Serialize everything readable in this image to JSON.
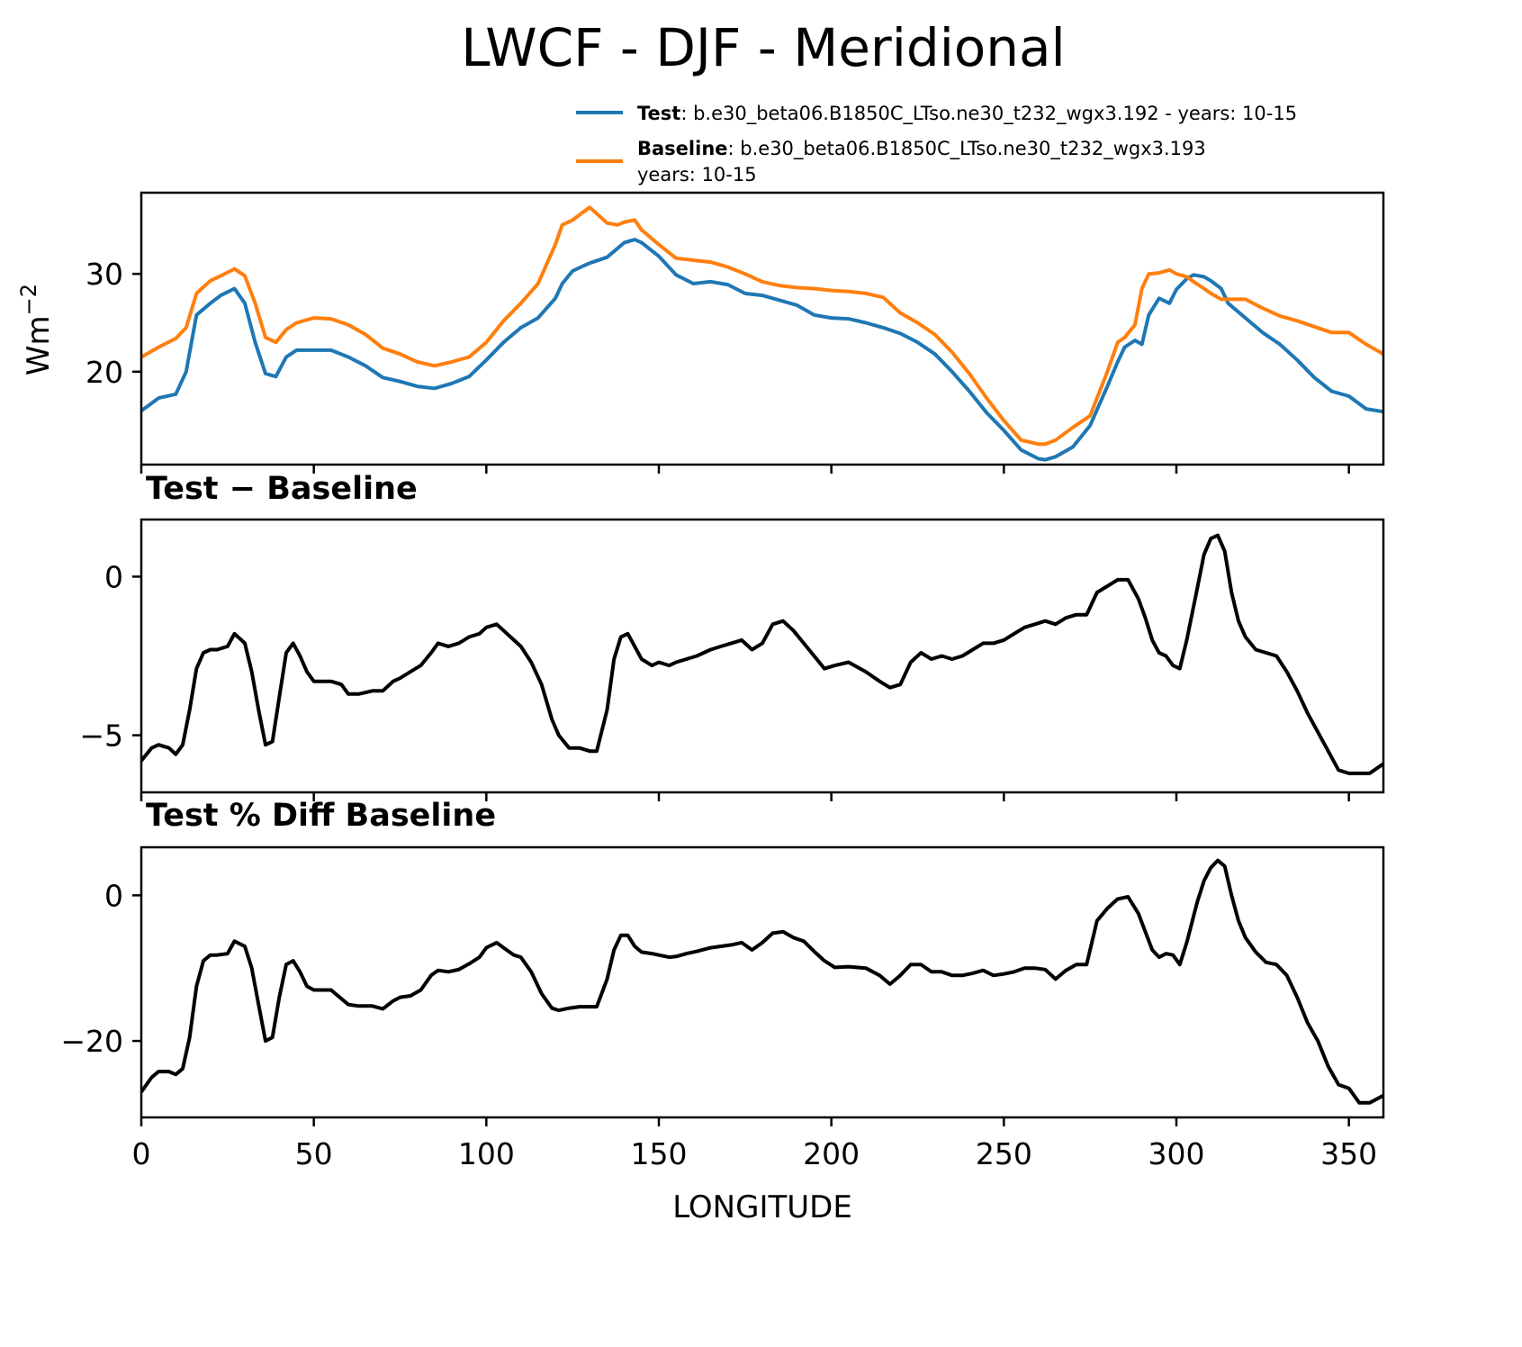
{
  "chart_data": {
    "type": "line",
    "title": "LWCF - DJF - Meridional",
    "xlabel": "LONGITUDE",
    "xlim": [
      0,
      360
    ],
    "xticks": [
      0,
      50,
      100,
      150,
      200,
      250,
      300,
      350
    ],
    "xtick_labels": [
      "0",
      "50",
      "100",
      "150",
      "200",
      "250",
      "300",
      "350"
    ],
    "legend": {
      "placement": "top-right (above top panel)",
      "entries": [
        {
          "name_bold": "Test",
          "text": ": b.e30_beta06.B1850C_LTso.ne30_t232_wgx3.192 - years: 10-15",
          "color": "#1f77b4"
        },
        {
          "name_bold": "Baseline",
          "text": ": b.e30_beta06.B1850C_LTso.ne30_t232_wgx3.193",
          "text2": "years: 10-15",
          "color": "#ff7f0e"
        }
      ]
    },
    "panels": [
      {
        "id": "main",
        "title": "",
        "ylabel": "Wm",
        "ylabel_sup": "−2",
        "ylim": [
          10.5,
          38.3
        ],
        "yticks": [
          20,
          30
        ],
        "ytick_labels": [
          "20",
          "30"
        ],
        "grid": false,
        "series": [
          {
            "name": "Test",
            "color": "#1f77b4",
            "x": [
              0,
              5,
              10,
              13,
              16,
              20,
              23,
              27,
              30,
              33,
              36,
              39,
              42,
              45,
              50,
              55,
              60,
              65,
              70,
              75,
              80,
              85,
              90,
              95,
              100,
              105,
              110,
              115,
              120,
              122,
              125,
              128,
              130,
              135,
              140,
              143,
              145,
              150,
              155,
              160,
              165,
              170,
              175,
              180,
              185,
              190,
              195,
              200,
              205,
              210,
              215,
              220,
              225,
              230,
              235,
              240,
              245,
              250,
              255,
              260,
              262,
              265,
              270,
              275,
              280,
              283,
              285,
              288,
              290,
              292,
              295,
              298,
              300,
              303,
              305,
              308,
              310,
              313,
              315,
              320,
              325,
              330,
              335,
              340,
              345,
              350,
              355,
              360
            ],
            "y": [
              16.0,
              17.3,
              17.7,
              20.0,
              25.8,
              27.0,
              27.8,
              28.5,
              27.0,
              23.0,
              19.8,
              19.5,
              21.5,
              22.2,
              22.2,
              22.2,
              21.5,
              20.6,
              19.4,
              19.0,
              18.5,
              18.3,
              18.8,
              19.5,
              21.2,
              23.0,
              24.5,
              25.5,
              27.5,
              29.0,
              30.3,
              30.8,
              31.1,
              31.7,
              33.2,
              33.5,
              33.2,
              31.8,
              29.9,
              29.0,
              29.2,
              28.9,
              28.0,
              27.8,
              27.3,
              26.8,
              25.8,
              25.5,
              25.4,
              25.0,
              24.5,
              23.9,
              23.0,
              21.8,
              20.0,
              18.0,
              15.8,
              14.0,
              12.0,
              11.1,
              11.0,
              11.3,
              12.3,
              14.5,
              18.5,
              21.0,
              22.5,
              23.2,
              22.8,
              25.8,
              27.5,
              27.0,
              28.4,
              29.5,
              29.9,
              29.7,
              29.3,
              28.5,
              27.0,
              25.5,
              24.0,
              22.8,
              21.2,
              19.4,
              18.0,
              17.5,
              16.2,
              15.9
            ]
          },
          {
            "name": "Baseline",
            "color": "#ff7f0e",
            "x": [
              0,
              5,
              10,
              13,
              16,
              20,
              23,
              27,
              30,
              33,
              36,
              39,
              42,
              45,
              50,
              55,
              60,
              65,
              70,
              75,
              80,
              85,
              90,
              95,
              100,
              105,
              110,
              115,
              120,
              122,
              125,
              128,
              130,
              135,
              138,
              140,
              143,
              145,
              150,
              155,
              160,
              165,
              170,
              175,
              180,
              185,
              190,
              195,
              200,
              205,
              210,
              215,
              220,
              225,
              230,
              235,
              240,
              245,
              250,
              255,
              260,
              262,
              265,
              270,
              275,
              280,
              283,
              285,
              288,
              290,
              292,
              295,
              298,
              300,
              303,
              305,
              308,
              310,
              313,
              315,
              320,
              325,
              330,
              335,
              340,
              345,
              350,
              355,
              360
            ],
            "y": [
              21.5,
              22.5,
              23.4,
              24.5,
              28.0,
              29.3,
              29.8,
              30.5,
              29.8,
              27.0,
              23.5,
              23.0,
              24.3,
              25.0,
              25.5,
              25.4,
              24.8,
              23.8,
              22.4,
              21.8,
              21.0,
              20.6,
              21.0,
              21.5,
              23.0,
              25.2,
              27.0,
              29.0,
              33.0,
              35.0,
              35.5,
              36.3,
              36.8,
              35.2,
              35.0,
              35.3,
              35.5,
              34.5,
              33.0,
              31.6,
              31.4,
              31.2,
              30.7,
              30.0,
              29.2,
              28.8,
              28.6,
              28.5,
              28.3,
              28.2,
              28.0,
              27.6,
              26.0,
              25.0,
              23.8,
              22.0,
              19.8,
              17.3,
              15.0,
              13.0,
              12.6,
              12.6,
              13.0,
              14.3,
              15.5,
              20.0,
              23.0,
              23.5,
              24.8,
              28.5,
              30.0,
              30.1,
              30.4,
              30.0,
              29.7,
              29.2,
              28.5,
              28.0,
              27.4,
              27.4,
              27.4,
              26.5,
              25.7,
              25.2,
              24.6,
              24.0,
              24.0,
              22.8,
              21.8
            ]
          }
        ]
      },
      {
        "id": "diff",
        "title": "Test − Baseline",
        "ylim": [
          -6.8,
          1.8
        ],
        "yticks": [
          -5,
          0
        ],
        "ytick_labels": [
          "−5",
          "0"
        ],
        "grid": false,
        "series": [
          {
            "name": "Test - Baseline",
            "color": "#000000",
            "x": [
              0,
              3,
              5,
              8,
              10,
              12,
              14,
              16,
              18,
              20,
              22,
              25,
              27,
              30,
              32,
              34,
              36,
              38,
              40,
              42,
              44,
              46,
              48,
              50,
              53,
              55,
              58,
              60,
              63,
              67,
              70,
              73,
              75,
              78,
              81,
              84,
              86,
              89,
              92,
              95,
              98,
              100,
              103,
              105,
              108,
              110,
              113,
              116,
              119,
              121,
              124,
              127,
              130,
              132,
              135,
              137,
              139,
              141,
              143,
              145,
              148,
              150,
              153,
              155,
              158,
              161,
              165,
              168,
              171,
              174,
              177,
              180,
              183,
              186,
              189,
              192,
              195,
              198,
              201,
              205,
              210,
              214,
              217,
              220,
              223,
              226,
              229,
              232,
              235,
              238,
              241,
              244,
              247,
              250,
              253,
              256,
              259,
              262,
              265,
              268,
              271,
              274,
              277,
              280,
              283,
              286,
              289,
              291,
              293,
              295,
              297,
              299,
              301,
              303,
              306,
              308,
              310,
              312,
              314,
              316,
              318,
              320,
              323,
              326,
              329,
              332,
              335,
              338,
              341,
              344,
              347,
              350,
              353,
              356,
              360
            ],
            "y": [
              -5.8,
              -5.4,
              -5.3,
              -5.4,
              -5.6,
              -5.3,
              -4.2,
              -2.9,
              -2.4,
              -2.3,
              -2.3,
              -2.2,
              -1.8,
              -2.1,
              -3.0,
              -4.2,
              -5.3,
              -5.2,
              -3.8,
              -2.4,
              -2.1,
              -2.5,
              -3.0,
              -3.3,
              -3.3,
              -3.3,
              -3.4,
              -3.7,
              -3.7,
              -3.6,
              -3.6,
              -3.3,
              -3.2,
              -3.0,
              -2.8,
              -2.4,
              -2.1,
              -2.2,
              -2.1,
              -1.9,
              -1.8,
              -1.6,
              -1.5,
              -1.7,
              -2.0,
              -2.2,
              -2.7,
              -3.4,
              -4.5,
              -5.0,
              -5.4,
              -5.4,
              -5.5,
              -5.5,
              -4.2,
              -2.6,
              -1.9,
              -1.8,
              -2.2,
              -2.6,
              -2.8,
              -2.7,
              -2.8,
              -2.7,
              -2.6,
              -2.5,
              -2.3,
              -2.2,
              -2.1,
              -2.0,
              -2.3,
              -2.1,
              -1.5,
              -1.4,
              -1.7,
              -2.1,
              -2.5,
              -2.9,
              -2.8,
              -2.7,
              -3.0,
              -3.3,
              -3.5,
              -3.4,
              -2.7,
              -2.4,
              -2.6,
              -2.5,
              -2.6,
              -2.5,
              -2.3,
              -2.1,
              -2.1,
              -2.0,
              -1.8,
              -1.6,
              -1.5,
              -1.4,
              -1.5,
              -1.3,
              -1.2,
              -1.2,
              -0.5,
              -0.3,
              -0.1,
              -0.1,
              -0.7,
              -1.3,
              -2.0,
              -2.4,
              -2.5,
              -2.8,
              -2.9,
              -2.0,
              -0.4,
              0.7,
              1.2,
              1.3,
              0.8,
              -0.5,
              -1.4,
              -1.9,
              -2.3,
              -2.4,
              -2.5,
              -3.0,
              -3.6,
              -4.3,
              -4.9,
              -5.5,
              -6.1,
              -6.2,
              -6.2,
              -6.2,
              -5.9
            ]
          }
        ]
      },
      {
        "id": "pctdiff",
        "title": "Test % Diff Baseline",
        "ylim": [
          -30.5,
          6.6
        ],
        "yticks": [
          -20,
          0
        ],
        "ytick_labels": [
          "−20",
          "0"
        ],
        "grid": false,
        "series": [
          {
            "name": "Test % Diff Baseline",
            "color": "#000000",
            "x": [
              0,
              3,
              5,
              8,
              10,
              12,
              14,
              16,
              18,
              20,
              22,
              25,
              27,
              30,
              32,
              34,
              36,
              38,
              40,
              42,
              44,
              46,
              48,
              50,
              53,
              55,
              58,
              60,
              63,
              67,
              70,
              73,
              75,
              78,
              81,
              84,
              86,
              89,
              92,
              95,
              98,
              100,
              103,
              105,
              108,
              110,
              113,
              116,
              119,
              121,
              124,
              127,
              130,
              132,
              135,
              137,
              139,
              141,
              143,
              145,
              148,
              150,
              153,
              155,
              158,
              161,
              165,
              168,
              171,
              174,
              177,
              180,
              183,
              186,
              189,
              192,
              195,
              198,
              201,
              205,
              210,
              214,
              217,
              220,
              223,
              226,
              229,
              232,
              235,
              238,
              241,
              244,
              247,
              250,
              253,
              256,
              259,
              262,
              265,
              268,
              271,
              274,
              277,
              280,
              283,
              286,
              289,
              291,
              293,
              295,
              297,
              299,
              301,
              303,
              306,
              308,
              310,
              312,
              314,
              316,
              318,
              320,
              323,
              326,
              329,
              332,
              335,
              338,
              341,
              344,
              347,
              350,
              353,
              356,
              360
            ],
            "y": [
              -27.0,
              -25.0,
              -24.2,
              -24.2,
              -24.6,
              -23.8,
              -19.5,
              -12.5,
              -9.0,
              -8.2,
              -8.2,
              -8.0,
              -6.3,
              -7.0,
              -10.0,
              -15.0,
              -20.0,
              -19.5,
              -14.0,
              -9.5,
              -9.0,
              -10.5,
              -12.5,
              -13.0,
              -13.0,
              -13.0,
              -14.2,
              -15.0,
              -15.2,
              -15.2,
              -15.6,
              -14.5,
              -14.0,
              -13.8,
              -13.0,
              -11.0,
              -10.3,
              -10.5,
              -10.2,
              -9.4,
              -8.5,
              -7.2,
              -6.5,
              -7.2,
              -8.2,
              -8.5,
              -10.5,
              -13.5,
              -15.5,
              -15.8,
              -15.5,
              -15.3,
              -15.3,
              -15.3,
              -11.5,
              -7.5,
              -5.5,
              -5.5,
              -7.0,
              -7.8,
              -8.0,
              -8.2,
              -8.5,
              -8.4,
              -8.0,
              -7.7,
              -7.2,
              -7.0,
              -6.8,
              -6.5,
              -7.5,
              -6.5,
              -5.2,
              -5.0,
              -5.8,
              -6.3,
              -7.7,
              -9.0,
              -9.9,
              -9.8,
              -10.0,
              -11.0,
              -12.2,
              -11.0,
              -9.5,
              -9.5,
              -10.5,
              -10.5,
              -11.0,
              -11.0,
              -10.7,
              -10.3,
              -11.0,
              -10.8,
              -10.5,
              -10.0,
              -10.0,
              -10.2,
              -11.5,
              -10.3,
              -9.5,
              -9.5,
              -3.5,
              -1.8,
              -0.5,
              -0.2,
              -2.5,
              -5.0,
              -7.5,
              -8.5,
              -8.0,
              -8.2,
              -9.5,
              -6.5,
              -1.0,
              2.0,
              3.8,
              4.8,
              4.0,
              0.0,
              -3.5,
              -5.8,
              -7.8,
              -9.2,
              -9.5,
              -11.0,
              -14.0,
              -17.5,
              -20.0,
              -23.5,
              -26.0,
              -26.5,
              -28.5,
              -28.5,
              -27.5
            ]
          }
        ]
      }
    ]
  }
}
